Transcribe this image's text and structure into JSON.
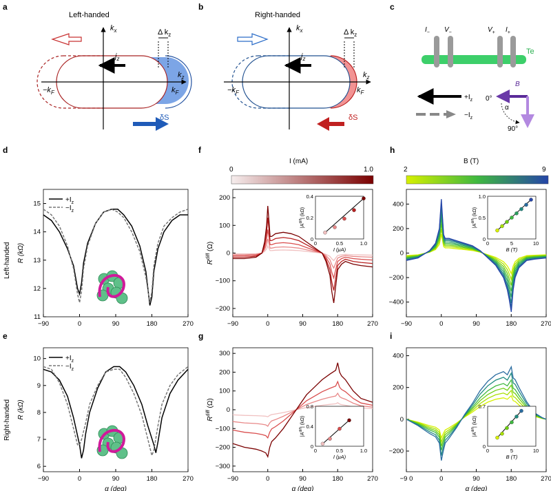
{
  "panels": {
    "a": {
      "letter": "a",
      "title": "Left-handed",
      "kx": "k",
      "kx_sub": "x",
      "kz": "k",
      "kz_sub": "z",
      "dkz": "Δ k",
      "dkz_sub": "z",
      "jz": "j",
      "jz_sub": "z",
      "kF_neg": "−k",
      "kF_pos": "k",
      "kF_sub": "F",
      "dS": "δS"
    },
    "b": {
      "letter": "b",
      "title": "Right-handed",
      "kx": "k",
      "kx_sub": "x",
      "kz": "k",
      "kz_sub": "z",
      "dkz": "Δ k",
      "dkz_sub": "z",
      "jz": "j",
      "jz_sub": "z",
      "kF_neg": "−k",
      "kF_pos": "k",
      "kF_sub": "F",
      "dS": "δS"
    },
    "c": {
      "letter": "c",
      "I_minus": "I",
      "I_plus": "I",
      "V_minus": "V",
      "V_plus": "V",
      "sub_minus": "−",
      "sub_plus": "+",
      "material": "Te",
      "plus_Iz": "+I",
      "minus_Iz": "−I",
      "Iz_sub": "z",
      "B": "B",
      "alpha": "α",
      "zero_deg": "0°",
      "ninety_deg": "90°"
    },
    "row_labels": {
      "left": "Left-handed",
      "right": "Right-handed"
    },
    "colorbar_f": {
      "label": "I (mA)",
      "min": "0",
      "max": "1.0",
      "start": "#f4e8e8",
      "end": "#7a0000"
    },
    "colorbar_h": {
      "label": "B (T)",
      "min": "2",
      "max": "9",
      "start": "#d6f000",
      "end": "#2545a8"
    }
  },
  "chart_data": [
    {
      "id": "d",
      "type": "line",
      "ylabel": "R (kΩ)",
      "xlim": [
        -90,
        270
      ],
      "ylim": [
        11,
        15.5
      ],
      "xticks": [
        "−90",
        "0",
        "90",
        "180",
        "270"
      ],
      "yticks": [
        "11",
        "12",
        "13",
        "14",
        "15"
      ],
      "legend_position": "top-left",
      "legend": [
        "+I",
        "−I"
      ],
      "legend_sub": "z",
      "series": [
        {
          "name": "+Iz",
          "style": "solid",
          "color": "#000000",
          "x": [
            -90,
            -70,
            -50,
            -30,
            -15,
            -5,
            0,
            5,
            10,
            20,
            40,
            60,
            80,
            95,
            110,
            130,
            150,
            165,
            175,
            180,
            185,
            195,
            210,
            230,
            250,
            270
          ],
          "y": [
            14.6,
            14.4,
            14.0,
            13.4,
            12.8,
            12.0,
            11.8,
            12.2,
            12.9,
            13.6,
            14.3,
            14.7,
            14.8,
            14.8,
            14.6,
            14.2,
            13.5,
            12.6,
            11.4,
            11.7,
            12.6,
            13.4,
            14.0,
            14.4,
            14.6,
            14.6
          ]
        },
        {
          "name": "−Iz",
          "style": "dashed",
          "color": "#777777",
          "x": [
            -90,
            -70,
            -50,
            -30,
            -15,
            -5,
            0,
            5,
            10,
            20,
            40,
            60,
            80,
            95,
            110,
            130,
            150,
            165,
            175,
            180,
            185,
            195,
            210,
            230,
            250,
            270
          ],
          "y": [
            14.8,
            14.6,
            14.2,
            13.5,
            12.7,
            11.8,
            11.5,
            11.9,
            12.7,
            13.5,
            14.3,
            14.7,
            14.8,
            14.7,
            14.5,
            14.0,
            13.3,
            12.4,
            11.5,
            11.9,
            12.8,
            13.6,
            14.2,
            14.5,
            14.7,
            14.8
          ]
        }
      ]
    },
    {
      "id": "e",
      "type": "line",
      "ylabel": "R (kΩ)",
      "xlim": [
        -90,
        270
      ],
      "ylim": [
        5.8,
        10.4
      ],
      "xticks": [
        "−90",
        "0",
        "90",
        "180",
        "270"
      ],
      "yticks": [
        "6",
        "7",
        "8",
        "9",
        "10"
      ],
      "xlabel": "α (deg)",
      "legend_position": "top-left",
      "legend": [
        "+I",
        "−I"
      ],
      "legend_sub": "z",
      "series": [
        {
          "name": "+Iz",
          "style": "solid",
          "color": "#000000",
          "x": [
            -90,
            -70,
            -50,
            -30,
            -15,
            0,
            5,
            10,
            15,
            25,
            45,
            65,
            85,
            100,
            115,
            135,
            155,
            170,
            185,
            190,
            195,
            205,
            225,
            245,
            270
          ],
          "y": [
            9.6,
            9.5,
            9.2,
            8.6,
            7.8,
            6.8,
            6.3,
            6.6,
            7.2,
            8.0,
            8.9,
            9.5,
            9.7,
            9.7,
            9.5,
            9.0,
            8.3,
            7.5,
            6.8,
            6.5,
            6.9,
            7.8,
            8.7,
            9.2,
            9.6
          ]
        },
        {
          "name": "−Iz",
          "style": "dashed",
          "color": "#777777",
          "x": [
            -90,
            -70,
            -50,
            -30,
            -15,
            -5,
            0,
            5,
            15,
            25,
            45,
            65,
            85,
            100,
            115,
            135,
            155,
            170,
            180,
            185,
            195,
            205,
            225,
            245,
            270
          ],
          "y": [
            9.7,
            9.6,
            9.1,
            8.3,
            7.4,
            6.8,
            6.8,
            7.0,
            7.6,
            8.3,
            9.0,
            9.5,
            9.6,
            9.6,
            9.3,
            8.7,
            7.9,
            7.0,
            6.4,
            6.6,
            7.5,
            8.3,
            9.0,
            9.4,
            9.7
          ]
        }
      ]
    },
    {
      "id": "f",
      "type": "line",
      "ylabel": "R",
      "ylabel_sup": "diff",
      "ylabel_unit": "(Ω)",
      "xlim": [
        -90,
        270
      ],
      "ylim": [
        -230,
        230
      ],
      "xticks": [
        "−90",
        "0",
        "90",
        "180",
        "270"
      ],
      "yticks": [
        "−200",
        "−100",
        "0",
        "100",
        "200"
      ],
      "series": [
        {
          "name": "0.2",
          "color": "#f0c0c0",
          "scale": 0.15
        },
        {
          "name": "0.4",
          "color": "#e88888",
          "scale": 0.3
        },
        {
          "name": "0.6",
          "color": "#d94d4d",
          "scale": 0.5
        },
        {
          "name": "0.8",
          "color": "#b82020",
          "scale": 0.75
        },
        {
          "name": "1.0",
          "color": "#7a0000",
          "scale": 1.0
        }
      ],
      "base": {
        "x": [
          -90,
          -60,
          -30,
          -15,
          -8,
          -3,
          0,
          3,
          6,
          10,
          20,
          40,
          60,
          80,
          100,
          120,
          140,
          150,
          160,
          165,
          170,
          175,
          180,
          185,
          190,
          200,
          220,
          240,
          270
        ],
        "y": [
          -20,
          -20,
          -15,
          0,
          40,
          100,
          170,
          120,
          60,
          60,
          70,
          75,
          70,
          60,
          40,
          20,
          0,
          -30,
          -80,
          -140,
          -180,
          -120,
          -60,
          -50,
          -40,
          -30,
          -40,
          -45,
          -50
        ]
      },
      "inset": {
        "xlabel": "I (μA)",
        "ylabel": "|A",
        "ylabel_sup": "diff",
        "ylabel_unit": "| (kΩ)",
        "xlim": [
          0,
          1
        ],
        "ylim": [
          0,
          0.4
        ],
        "xticks": [
          "0",
          "0.5",
          "1.0"
        ],
        "yticks": [
          "0",
          "0.2",
          "0.4"
        ],
        "x": [
          0.2,
          0.4,
          0.6,
          0.8,
          1.0
        ],
        "y": [
          0.06,
          0.11,
          0.19,
          0.27,
          0.38
        ],
        "colors": [
          "#f0c0c0",
          "#e88888",
          "#d94d4d",
          "#b82020",
          "#7a0000"
        ]
      }
    },
    {
      "id": "g",
      "type": "line",
      "ylabel": "R",
      "ylabel_sup": "diff",
      "ylabel_unit": "(Ω)",
      "xlim": [
        -90,
        270
      ],
      "ylim": [
        -330,
        330
      ],
      "xticks": [
        "−90",
        "0",
        "90",
        "180",
        "270"
      ],
      "yticks": [
        "−300",
        "−200",
        "−100",
        "0",
        "100",
        "200",
        "300"
      ],
      "xlabel": "α (deg)",
      "series": [
        {
          "name": "0.2",
          "color": "#f0c0c0",
          "scale": 0.15
        },
        {
          "name": "0.4",
          "color": "#e88888",
          "scale": 0.35
        },
        {
          "name": "0.6",
          "color": "#d94d4d",
          "scale": 0.6
        },
        {
          "name": "1.0",
          "color": "#7a0000",
          "scale": 1.0
        }
      ],
      "base": {
        "x": [
          -90,
          -60,
          -30,
          -15,
          -5,
          0,
          5,
          10,
          20,
          40,
          60,
          80,
          100,
          120,
          140,
          160,
          175,
          180,
          185,
          190,
          200,
          220,
          240,
          270
        ],
        "y": [
          -180,
          -200,
          -210,
          -220,
          -230,
          -250,
          -200,
          -170,
          -150,
          -100,
          -40,
          20,
          80,
          120,
          160,
          190,
          210,
          250,
          200,
          180,
          160,
          100,
          60,
          40
        ]
      },
      "inset": {
        "xlabel": "I (μA)",
        "ylabel": "|A",
        "ylabel_sup": "diff",
        "ylabel_unit": "| (kΩ)",
        "xlim": [
          0,
          1
        ],
        "ylim": [
          0,
          0.8
        ],
        "xticks": [
          "0",
          "0.5",
          "1.0"
        ],
        "yticks": [
          "0",
          "0.4",
          "0.8"
        ],
        "x": [
          0.15,
          0.3,
          0.5,
          0.7
        ],
        "y": [
          0.05,
          0.15,
          0.35,
          0.52
        ],
        "colors": [
          "#f0c0c0",
          "#e88888",
          "#d94d4d",
          "#7a0000"
        ]
      }
    },
    {
      "id": "h",
      "type": "line",
      "xlim": [
        -90,
        270
      ],
      "ylim": [
        -520,
        520
      ],
      "xticks": [
        "−90",
        "0",
        "90",
        "180",
        "270"
      ],
      "yticks": [
        "−400",
        "−200",
        "0",
        "200",
        "400"
      ],
      "series": [
        {
          "name": "2",
          "color": "#d6f000",
          "scale": 0.35
        },
        {
          "name": "3",
          "color": "#a8e000",
          "scale": 0.45
        },
        {
          "name": "4",
          "color": "#6fce10",
          "scale": 0.55
        },
        {
          "name": "5",
          "color": "#3fb840",
          "scale": 0.65
        },
        {
          "name": "6",
          "color": "#2ba060",
          "scale": 0.75
        },
        {
          "name": "7",
          "color": "#208a80",
          "scale": 0.85
        },
        {
          "name": "8",
          "color": "#2a6ca0",
          "scale": 0.93
        },
        {
          "name": "9",
          "color": "#2545a8",
          "scale": 1.0
        }
      ],
      "base": {
        "x": [
          -90,
          -60,
          -30,
          -15,
          -5,
          0,
          3,
          6,
          10,
          20,
          40,
          60,
          80,
          100,
          120,
          140,
          160,
          170,
          175,
          180,
          185,
          190,
          200,
          220,
          240,
          270
        ],
        "y": [
          -60,
          -40,
          20,
          80,
          200,
          440,
          300,
          150,
          120,
          120,
          100,
          80,
          60,
          20,
          -40,
          -100,
          -200,
          -300,
          -380,
          -480,
          -300,
          -200,
          -120,
          -60,
          -50,
          -40
        ]
      },
      "inset": {
        "xlabel": "B (T)",
        "ylabel": "|A",
        "ylabel_sup": "diff",
        "ylabel_unit": "| (kΩ)",
        "xlim": [
          0,
          10
        ],
        "ylim": [
          0,
          1.0
        ],
        "xticks": [
          "0",
          "5",
          "10"
        ],
        "yticks": [
          "0",
          "0.5",
          "1.0"
        ],
        "x": [
          2,
          3,
          4,
          5,
          6,
          7,
          8,
          9
        ],
        "y": [
          0.2,
          0.3,
          0.4,
          0.5,
          0.6,
          0.7,
          0.8,
          0.92
        ],
        "colors": [
          "#d6f000",
          "#a8e000",
          "#6fce10",
          "#3fb840",
          "#2ba060",
          "#208a80",
          "#2a6ca0",
          "#2545a8"
        ]
      }
    },
    {
      "id": "i",
      "type": "line",
      "xlim": [
        -90,
        270
      ],
      "ylim": [
        -330,
        450
      ],
      "xticks": [
        "−9 0",
        "0",
        "90",
        "180",
        "270"
      ],
      "yticks": [
        "−200",
        "0",
        "200",
        "400"
      ],
      "xlabel": "α (deg)",
      "series": [
        {
          "name": "2",
          "color": "#d6f000",
          "scale": 0.45
        },
        {
          "name": "3",
          "color": "#a8e000",
          "scale": 0.55
        },
        {
          "name": "4",
          "color": "#6fce10",
          "scale": 0.65
        },
        {
          "name": "5",
          "color": "#3fb840",
          "scale": 0.75
        },
        {
          "name": "6",
          "color": "#208a80",
          "scale": 0.88
        },
        {
          "name": "7",
          "color": "#2a6ca0",
          "scale": 1.0
        }
      ],
      "base": {
        "x": [
          -90,
          -60,
          -30,
          -15,
          -5,
          0,
          5,
          10,
          20,
          40,
          60,
          80,
          100,
          120,
          140,
          160,
          170,
          180,
          185,
          190,
          200,
          220,
          240,
          260,
          270
        ],
        "y": [
          0,
          -40,
          -90,
          -110,
          -150,
          -260,
          -200,
          -150,
          -120,
          -50,
          30,
          100,
          180,
          240,
          280,
          300,
          280,
          330,
          260,
          250,
          200,
          110,
          40,
          10,
          0
        ]
      },
      "inset": {
        "xlabel": "B (T)",
        "ylabel": "|A",
        "ylabel_sup": "diff",
        "ylabel_unit": "| (kΩ)",
        "xlim": [
          0,
          10
        ],
        "ylim": [
          0,
          0.7
        ],
        "xticks": [
          "0",
          "5",
          "10"
        ],
        "yticks": [
          "0",
          "0.7"
        ],
        "x": [
          2,
          3,
          4,
          5,
          6,
          7
        ],
        "y": [
          0.15,
          0.22,
          0.32,
          0.42,
          0.52,
          0.62
        ],
        "colors": [
          "#d6f000",
          "#a8e000",
          "#6fce10",
          "#3fb840",
          "#208a80",
          "#2a6ca0"
        ]
      }
    }
  ]
}
